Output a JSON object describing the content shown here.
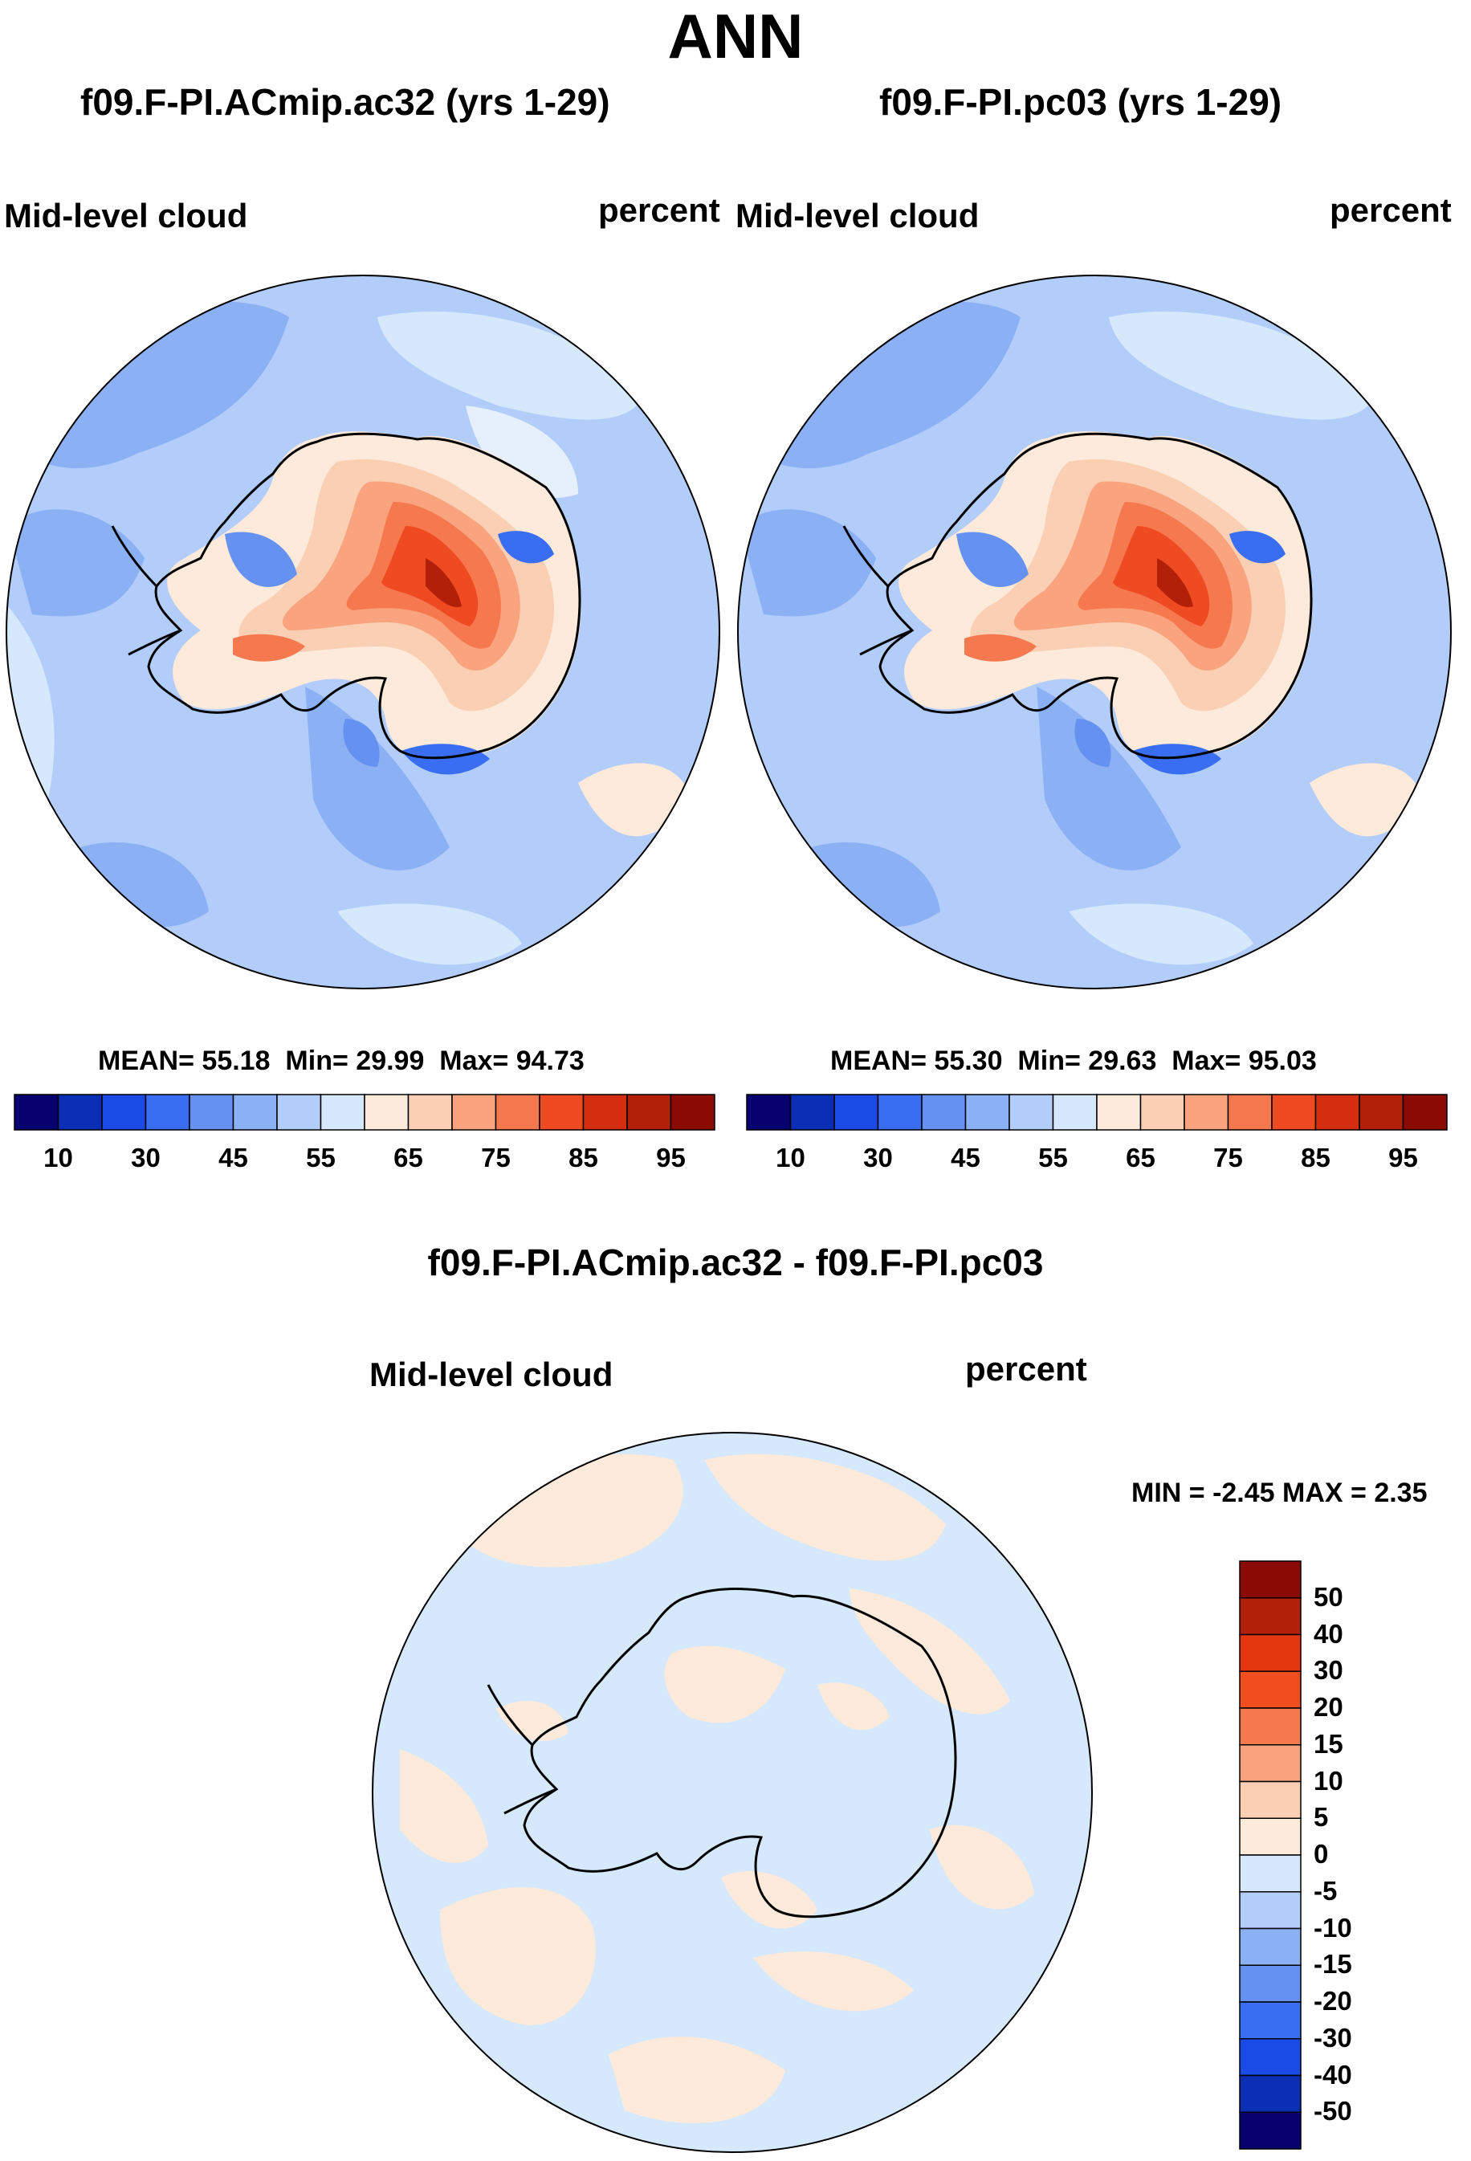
{
  "title": "ANN",
  "panels": [
    {
      "case": "f09.F-PI.ACmip.ac32 (yrs 1-29)",
      "variable": "Mid-level cloud",
      "units": "percent",
      "stats": {
        "mean_label": "MEAN=",
        "mean": "55.18",
        "min_label": "Min=",
        "min": "29.99",
        "max_label": "Max=",
        "max": "94.73"
      }
    },
    {
      "case": "f09.F-PI.pc03 (yrs 1-29)",
      "variable": "Mid-level cloud",
      "units": "percent",
      "stats": {
        "mean_label": "MEAN=",
        "mean": "55.30",
        "min_label": "Min=",
        "min": "29.63",
        "max_label": "Max=",
        "max": "95.03"
      }
    }
  ],
  "abs_colorbar": {
    "colors": [
      "#08006e",
      "#0b2fb4",
      "#1a4be6",
      "#3a6ef2",
      "#6592f0",
      "#8bb0f4",
      "#b2cdfa",
      "#d6e8fb",
      "#fdeadb",
      "#fbcfb3",
      "#f9a37f",
      "#f6784f",
      "#ef4b22",
      "#d42e10",
      "#b2200a",
      "#8a0a06"
    ],
    "tick_labels": [
      "10",
      "30",
      "45",
      "55",
      "65",
      "75",
      "85",
      "95"
    ]
  },
  "difference": {
    "title": "f09.F-PI.ACmip.ac32 - f09.F-PI.pc03",
    "variable": "Mid-level cloud",
    "units": "percent",
    "minmax": "MIN =  -2.45 MAX =   2.35",
    "colorbar": {
      "colors": [
        "#8a0a06",
        "#b2200a",
        "#e5370f",
        "#f04e1e",
        "#f6784f",
        "#f9a37f",
        "#fbcfb3",
        "#fdeadb",
        "#d6e8fb",
        "#b2cdfa",
        "#8bb0f4",
        "#6592f0",
        "#3a6ef2",
        "#1a4be6",
        "#0b2fb4",
        "#08006e"
      ],
      "tick_labels": [
        "50",
        "40",
        "30",
        "20",
        "15",
        "10",
        "5",
        "0",
        "-5",
        "-10",
        "-15",
        "-20",
        "-30",
        "-40",
        "-50"
      ]
    }
  },
  "chart_data": [
    {
      "type": "heatmap",
      "title": "f09.F-PI.ACmip.ac32 (yrs 1-29)",
      "field": "Mid-level cloud",
      "units": "percent",
      "projection": "south-polar stereographic",
      "contour_levels": [
        10,
        20,
        30,
        40,
        45,
        50,
        55,
        60,
        65,
        70,
        75,
        80,
        85,
        90,
        95
      ],
      "mean": 55.18,
      "min": 29.99,
      "max": 94.73
    },
    {
      "type": "heatmap",
      "title": "f09.F-PI.pc03 (yrs 1-29)",
      "field": "Mid-level cloud",
      "units": "percent",
      "projection": "south-polar stereographic",
      "contour_levels": [
        10,
        20,
        30,
        40,
        45,
        50,
        55,
        60,
        65,
        70,
        75,
        80,
        85,
        90,
        95
      ],
      "mean": 55.3,
      "min": 29.63,
      "max": 95.03
    },
    {
      "type": "heatmap",
      "title": "f09.F-PI.ACmip.ac32 - f09.F-PI.pc03",
      "field": "Mid-level cloud",
      "units": "percent",
      "projection": "south-polar stereographic",
      "contour_levels": [
        -50,
        -40,
        -30,
        -20,
        -15,
        -10,
        -5,
        0,
        5,
        10,
        15,
        20,
        30,
        40,
        50
      ],
      "min": -2.45,
      "max": 2.35
    }
  ]
}
